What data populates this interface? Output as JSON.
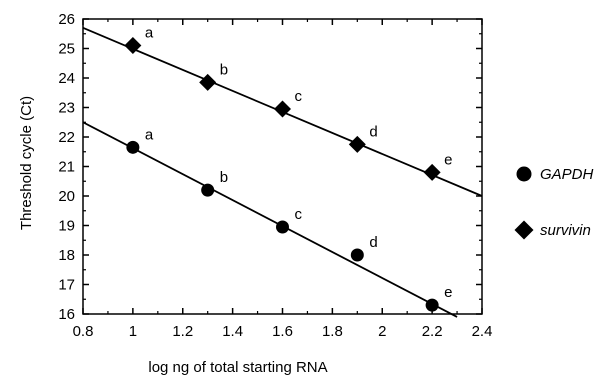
{
  "chart_data": {
    "type": "scatter",
    "xlabel": "log ng of total starting RNA",
    "ylabel": "Threshold cycle (Ct)",
    "xlim": [
      0.8,
      2.4
    ],
    "ylim": [
      16,
      26
    ],
    "grid": false,
    "legend_placement": "right",
    "x_ticks": [
      "0.8",
      "1",
      "1.2",
      "1.4",
      "1.6",
      "1.8",
      "2",
      "2.2",
      "2.4"
    ],
    "y_ticks": [
      "16",
      "17",
      "18",
      "19",
      "20",
      "21",
      "22",
      "23",
      "24",
      "25",
      "26"
    ],
    "series": [
      {
        "name": "GAPDH",
        "marker": "circle",
        "x": [
          1.0,
          1.3,
          1.6,
          1.9,
          2.2
        ],
        "y": [
          21.65,
          20.2,
          18.95,
          18.0,
          16.3
        ],
        "labels": [
          "a",
          "b",
          "c",
          "d",
          "e"
        ],
        "fit": {
          "x": [
            0.8,
            2.3
          ],
          "y": [
            22.5,
            15.9
          ]
        }
      },
      {
        "name": "survivin",
        "marker": "diamond",
        "x": [
          1.0,
          1.3,
          1.6,
          1.9,
          2.2
        ],
        "y": [
          25.1,
          23.85,
          22.95,
          21.75,
          20.8
        ],
        "labels": [
          "a",
          "b",
          "c",
          "d",
          "e"
        ],
        "fit": {
          "x": [
            0.8,
            2.4
          ],
          "y": [
            25.7,
            20.0
          ]
        }
      }
    ]
  }
}
